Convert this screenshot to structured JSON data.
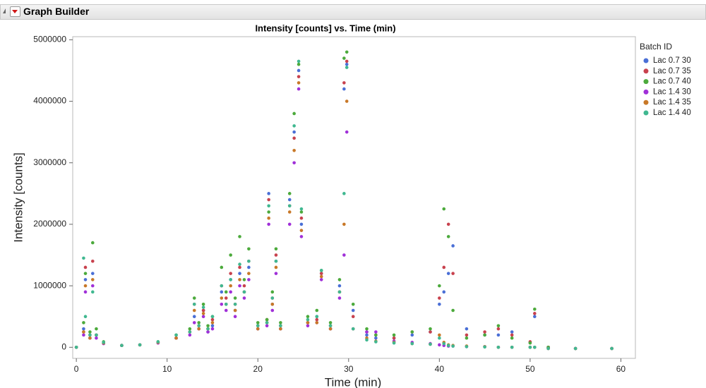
{
  "window_title": "Graph Builder",
  "chart_data": {
    "type": "scatter",
    "title": "Intensity [counts] vs. Time (min)",
    "x_label": "Time (min)",
    "y_label": "Intensity [counts]",
    "legend_title": "Batch ID",
    "legend": "right",
    "xlim": [
      -0.4,
      61.6
    ],
    "xticks": [
      0,
      10,
      20,
      30,
      40,
      50,
      60
    ],
    "ylim": [
      -180000,
      5050000
    ],
    "yticks": [
      0,
      1000000,
      2000000,
      3000000,
      4000000,
      5000000
    ],
    "x": [
      0,
      0.8,
      1.0,
      1.5,
      1.8,
      2.2,
      3,
      5,
      7,
      9,
      11,
      12.5,
      13,
      13.5,
      14,
      14.5,
      15,
      16,
      16.5,
      17,
      17.5,
      18,
      18.5,
      19,
      20,
      21,
      21.2,
      21.6,
      22,
      22.5,
      23.5,
      24,
      24.5,
      24.8,
      25.5,
      26.5,
      27,
      28,
      29,
      29.5,
      29.8,
      30.5,
      32,
      33,
      35,
      37,
      39,
      40,
      40.5,
      41,
      41.5,
      43,
      45,
      46.5,
      48,
      50,
      50.5,
      52,
      55,
      59
    ],
    "series": [
      {
        "name": "Lac 0.7 30",
        "color": "#4a6fd6",
        "values": [
          0,
          300000,
          1100000,
          150000,
          1200000,
          200000,
          80000,
          30000,
          40000,
          80000,
          150000,
          250000,
          500000,
          300000,
          600000,
          250000,
          350000,
          900000,
          700000,
          1100000,
          600000,
          1200000,
          900000,
          1300000,
          300000,
          400000,
          2500000,
          700000,
          1400000,
          300000,
          2400000,
          3500000,
          4500000,
          2000000,
          400000,
          500000,
          1200000,
          300000,
          1000000,
          4200000,
          4600000,
          600000,
          200000,
          150000,
          150000,
          200000,
          250000,
          700000,
          900000,
          1200000,
          1650000,
          300000,
          200000,
          200000,
          250000,
          80000,
          500000,
          0,
          -20000,
          -20000
        ]
      },
      {
        "name": "Lac 0.7 35",
        "color": "#c8424e",
        "values": [
          0,
          250000,
          1300000,
          200000,
          1400000,
          200000,
          70000,
          30000,
          40000,
          80000,
          150000,
          250000,
          700000,
          350000,
          600000,
          300000,
          450000,
          1000000,
          800000,
          1200000,
          700000,
          1300000,
          1000000,
          1400000,
          350000,
          450000,
          2400000,
          800000,
          1500000,
          350000,
          2300000,
          3400000,
          4400000,
          2100000,
          400000,
          450000,
          1200000,
          350000,
          900000,
          4300000,
          4650000,
          500000,
          250000,
          200000,
          150000,
          250000,
          250000,
          800000,
          1300000,
          2000000,
          1200000,
          200000,
          250000,
          300000,
          200000,
          90000,
          550000,
          0,
          -20000,
          -20000
        ]
      },
      {
        "name": "Lac 0.7 40",
        "color": "#4caa3c",
        "values": [
          0,
          400000,
          1200000,
          250000,
          1700000,
          300000,
          90000,
          30000,
          40000,
          90000,
          200000,
          300000,
          800000,
          400000,
          700000,
          350000,
          500000,
          1300000,
          900000,
          1500000,
          800000,
          1800000,
          1100000,
          1600000,
          400000,
          450000,
          2200000,
          900000,
          1600000,
          400000,
          2500000,
          3800000,
          4600000,
          2200000,
          500000,
          600000,
          1250000,
          400000,
          1100000,
          4700000,
          4800000,
          700000,
          300000,
          200000,
          200000,
          250000,
          300000,
          1000000,
          2250000,
          1800000,
          600000,
          150000,
          200000,
          350000,
          150000,
          70000,
          620000,
          0,
          -20000,
          -20000
        ]
      },
      {
        "name": "Lac 1.4 30",
        "color": "#a030d8",
        "values": [
          0,
          200000,
          900000,
          150000,
          1000000,
          150000,
          60000,
          30000,
          40000,
          70000,
          150000,
          200000,
          400000,
          300000,
          500000,
          250000,
          300000,
          700000,
          600000,
          900000,
          500000,
          1000000,
          800000,
          1100000,
          300000,
          350000,
          2000000,
          600000,
          1200000,
          300000,
          2000000,
          3000000,
          4200000,
          1800000,
          350000,
          400000,
          1100000,
          300000,
          800000,
          1500000,
          3500000,
          300000,
          250000,
          250000,
          100000,
          80000,
          60000,
          40000,
          30000,
          20000,
          20000,
          10000,
          10000,
          0,
          0,
          0,
          0,
          -20000,
          -20000,
          -20000
        ]
      },
      {
        "name": "Lac 1.4 35",
        "color": "#c87828",
        "values": [
          0,
          250000,
          1000000,
          150000,
          1100000,
          200000,
          70000,
          30000,
          40000,
          80000,
          150000,
          250000,
          600000,
          300000,
          550000,
          300000,
          400000,
          800000,
          700000,
          1000000,
          600000,
          1100000,
          900000,
          1200000,
          300000,
          400000,
          2100000,
          700000,
          1300000,
          300000,
          2200000,
          3200000,
          4300000,
          1900000,
          400000,
          400000,
          1150000,
          300000,
          900000,
          2000000,
          4000000,
          300000,
          150000,
          100000,
          80000,
          60000,
          50000,
          200000,
          80000,
          40000,
          30000,
          20000,
          10000,
          0,
          0,
          0,
          0,
          -20000,
          -20000,
          -20000
        ]
      },
      {
        "name": "Lac 1.4 40",
        "color": "#40b890",
        "values": [
          0,
          1450000,
          500000,
          200000,
          900000,
          200000,
          80000,
          30000,
          40000,
          90000,
          200000,
          250000,
          700000,
          350000,
          650000,
          300000,
          500000,
          1000000,
          700000,
          1100000,
          700000,
          1350000,
          900000,
          1400000,
          350000,
          400000,
          2300000,
          800000,
          1400000,
          350000,
          2300000,
          3600000,
          4650000,
          2250000,
          450000,
          500000,
          1250000,
          350000,
          900000,
          2500000,
          4550000,
          300000,
          120000,
          90000,
          70000,
          60000,
          50000,
          150000,
          60000,
          30000,
          20000,
          10000,
          5000,
          0,
          0,
          0,
          0,
          -20000,
          -20000,
          -20000
        ]
      }
    ]
  }
}
